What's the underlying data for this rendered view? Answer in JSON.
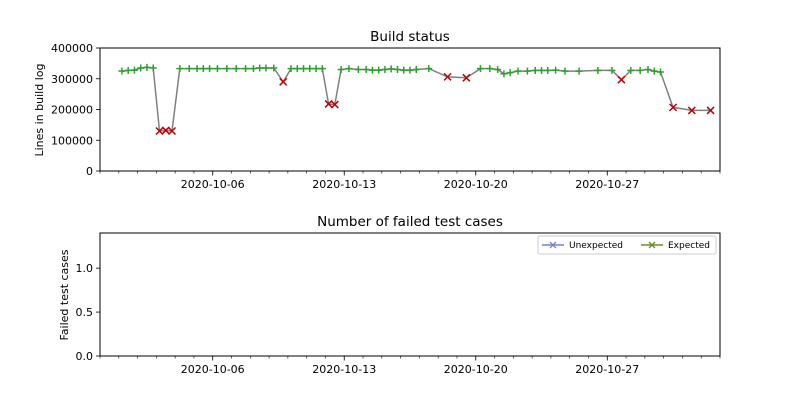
{
  "colors": {
    "line": "#808080",
    "success": "#2ca02c",
    "failure": "#c00000",
    "unexpected": "#7b84c8",
    "expected": "#6b8e23"
  },
  "chart_data": [
    {
      "type": "line",
      "title": "Build status",
      "xlabel": "",
      "ylabel": "Lines in build log",
      "xlim": [
        "2020-09-30",
        "2020-11-02"
      ],
      "ylim": [
        0,
        400000
      ],
      "yticks": [
        0,
        100000,
        200000,
        300000,
        400000
      ],
      "ytick_labels": [
        "0",
        "100000",
        "200000",
        "300000",
        "400000"
      ],
      "xticks": [
        "2020-10-06",
        "2020-10-13",
        "2020-10-20",
        "2020-10-27"
      ],
      "grid": false,
      "series": [
        {
          "x": [
            "2020-10-01",
            "2020-10-01",
            "2020-10-01",
            "2020-10-02",
            "2020-10-02",
            "2020-10-02",
            "2020-10-03",
            "2020-10-03",
            "2020-10-03",
            "2020-10-04",
            "2020-10-04",
            "2020-10-05",
            "2020-10-05",
            "2020-10-05",
            "2020-10-06",
            "2020-10-06",
            "2020-10-07",
            "2020-10-07",
            "2020-10-08",
            "2020-10-08",
            "2020-10-08",
            "2020-10-09",
            "2020-10-09",
            "2020-10-10",
            "2020-10-10",
            "2020-10-10",
            "2020-10-11",
            "2020-10-11",
            "2020-10-11",
            "2020-10-12",
            "2020-10-12",
            "2020-10-12",
            "2020-10-13",
            "2020-10-13",
            "2020-10-14",
            "2020-10-14",
            "2020-10-14",
            "2020-10-15",
            "2020-10-15",
            "2020-10-15",
            "2020-10-16",
            "2020-10-16",
            "2020-10-16",
            "2020-10-17",
            "2020-10-18",
            "2020-10-19",
            "2020-10-20",
            "2020-10-20",
            "2020-10-21",
            "2020-10-21",
            "2020-10-21",
            "2020-10-22",
            "2020-10-22",
            "2020-10-23",
            "2020-10-23",
            "2020-10-23",
            "2020-10-24",
            "2020-10-24",
            "2020-10-25",
            "2020-10-26",
            "2020-10-27",
            "2020-10-27",
            "2020-10-28",
            "2020-10-28",
            "2020-10-29",
            "2020-10-29",
            "2020-10-29",
            "2020-10-30",
            "2020-10-31",
            "2020-11-01"
          ],
          "y": [
            325000,
            327000,
            328000,
            335000,
            337000,
            335000,
            130000,
            132000,
            130000,
            333000,
            333000,
            333000,
            333000,
            333000,
            333000,
            333000,
            333000,
            333000,
            333000,
            335000,
            335000,
            335000,
            290000,
            333000,
            333000,
            333000,
            333000,
            333000,
            333000,
            218000,
            216000,
            330000,
            333000,
            330000,
            330000,
            328000,
            328000,
            330000,
            332000,
            330000,
            328000,
            328000,
            330000,
            333000,
            306000,
            303000,
            333000,
            333000,
            330000,
            316000,
            320000,
            325000,
            325000,
            327000,
            327000,
            327000,
            328000,
            325000,
            325000,
            327000,
            327000,
            297000,
            327000,
            327000,
            330000,
            325000,
            322000,
            207000,
            197000,
            197000
          ],
          "status": [
            "ok",
            "ok",
            "ok",
            "ok",
            "ok",
            "ok",
            "fail",
            "fail",
            "fail",
            "ok",
            "ok",
            "ok",
            "ok",
            "ok",
            "ok",
            "ok",
            "ok",
            "ok",
            "ok",
            "ok",
            "ok",
            "ok",
            "fail",
            "ok",
            "ok",
            "ok",
            "ok",
            "ok",
            "ok",
            "fail",
            "fail",
            "ok",
            "ok",
            "ok",
            "ok",
            "ok",
            "ok",
            "ok",
            "ok",
            "ok",
            "ok",
            "ok",
            "ok",
            "ok",
            "fail",
            "fail",
            "ok",
            "ok",
            "ok",
            "ok",
            "ok",
            "ok",
            "ok",
            "ok",
            "ok",
            "ok",
            "ok",
            "ok",
            "ok",
            "ok",
            "ok",
            "fail",
            "ok",
            "ok",
            "ok",
            "ok",
            "ok",
            "fail",
            "fail",
            "fail"
          ]
        }
      ]
    },
    {
      "type": "line",
      "title": "Number of failed test cases",
      "xlabel": "",
      "ylabel": "Failed test cases",
      "xlim": [
        "2020-09-30",
        "2020-11-02"
      ],
      "ylim": [
        0,
        1.4
      ],
      "yticks": [
        0.0,
        0.5,
        1.0
      ],
      "ytick_labels": [
        "0.0",
        "0.5",
        "1.0"
      ],
      "xticks": [
        "2020-10-06",
        "2020-10-13",
        "2020-10-20",
        "2020-10-27"
      ],
      "grid": false,
      "legend": "top-right",
      "series": [
        {
          "name": "Unexpected",
          "x": [],
          "y": []
        },
        {
          "name": "Expected",
          "x": [],
          "y": []
        }
      ]
    }
  ]
}
